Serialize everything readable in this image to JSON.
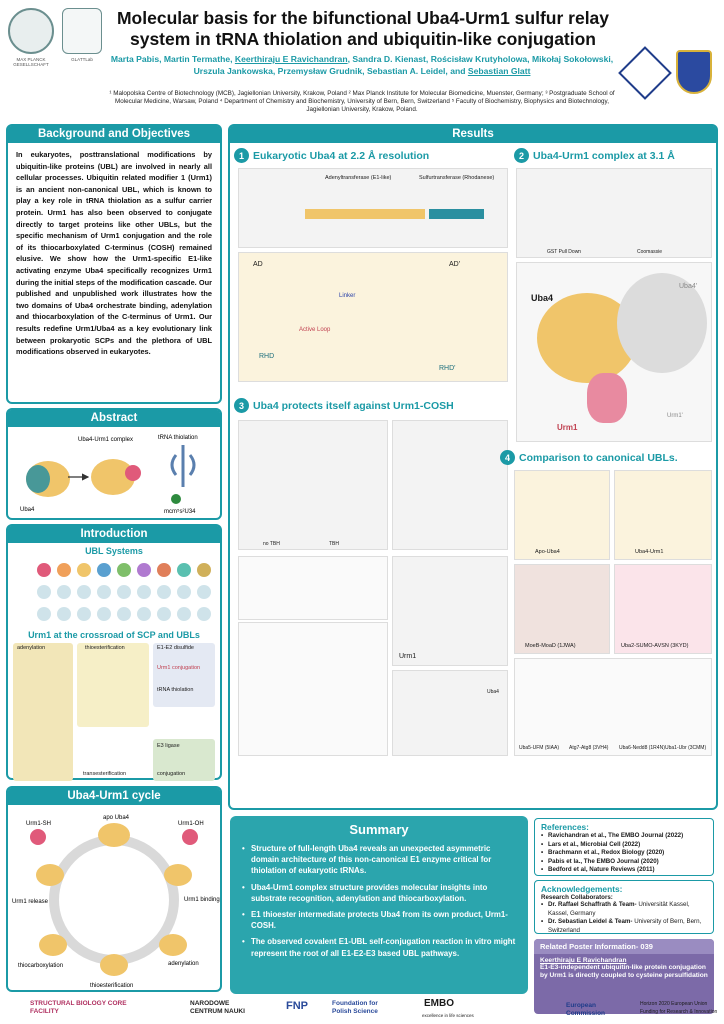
{
  "header": {
    "title": "Molecular basis for the bifunctional Uba4-Urm1 sulfur relay system in tRNA thiolation and ubiquitin-like conjugation",
    "authors_line1": "Marta Pabis",
    "authors_line1_rest": ", Martin Termathe, ",
    "presenter": "Keerthiraju E Ravichandran",
    "authors_line1_tail": ", Sandra D. Kienast, Rościsław Krutyholowa,",
    "authors_line2_a": "Mikołaj Sokołowski, Urszula Jankowska, Przemysław Grudnik, Sebastian A. Leidel, and ",
    "pi": "Sebastian Glatt",
    "affiliations": "¹ Malopolska Centre of Biotechnology (MCB), Jagiellonian University, Krakow, Poland ² Max Planck Institute for Molecular Biomedicine, Muenster, Germany; ³ Postgraduate School of Molecular Medicine, Warsaw, Poland ⁴ Department of Chemistry and Biochemistry, University of Bern, Bern, Switzerland ⁵ Faculty of Biochemistry, Biophysics and Biotechnology, Jagiellonian University, Krakow, Poland.",
    "logo_left_caption": "MAX PLANCK GESELLSCHAFT",
    "logo_lab_caption": "GLATTLab"
  },
  "background": {
    "heading": "Background and Objectives",
    "text": "In eukaryotes, posttranslational modifications by ubiquitin-like proteins (UBL) are involved in nearly all cellular processes. Ubiquitin related modifier 1 (Urm1) is an ancient non-canonical UBL, which is known to play a key role in tRNA thiolation as a sulfur carrier protein. Urm1 has also been observed to conjugate directly to target proteins like other UBLs, but the specific mechanism of Urm1 conjugation and the role of its thiocarboxylated C-terminus (COSH) remained elusive. We show how the Urm1-specific E1-like activating enzyme Uba4 specifically recognizes Urm1 during the initial steps of the modification cascade. Our published and unpublished work illustrates how the two domains of Uba4 orchestrate binding, adenylation and thiocarboxylation of the C-terminus of Urm1. Our results redefine Urm1/Uba4 as a key evolutionary link between prokaryotic SCPs and the plethora of UBL modifications observed in eukaryotes."
  },
  "abstract": {
    "heading": "Abstract",
    "labels": [
      "Uba4-Urm1 complex",
      "tRNA thiolation",
      "Uba4",
      "mcm⁵s²U34"
    ]
  },
  "introduction": {
    "heading": "Introduction",
    "sub1": "UBL Systems",
    "sub2": "Urm1 at the crossroad of SCP and UBLs",
    "crossroad_labels": [
      "adenylation",
      "thioesterification",
      "E1-E2 disulfide",
      "Urm1 conjugation",
      "tRNA thiolation",
      "transesterification",
      "E3 ligase",
      "conjugation"
    ]
  },
  "cycle": {
    "heading": "Uba4-Urm1 cycle",
    "labels": [
      "apo Uba4",
      "Urm1-SH",
      "Urm1-OH",
      "Urm1 binding",
      "adenylation",
      "thioesterification",
      "thiocarboxylation",
      "Urm1 release"
    ]
  },
  "results": {
    "heading": "Results",
    "s1": {
      "num": "1",
      "title": "Eukaryotic Uba4 at 2.2 Å resolution"
    },
    "s2": {
      "num": "2",
      "title": "Uba4-Urm1 complex at 3.1 Å"
    },
    "s3": {
      "num": "3",
      "title": "Uba4 protects itself against Urm1-COSH"
    },
    "s4": {
      "num": "4",
      "title": "Comparison to canonical UBLs."
    },
    "fig1_labels": [
      "AD",
      "AD'",
      "RHD",
      "RHD'",
      "Linker",
      "Active Loop",
      "Adenyltransferase (E1-like)",
      "Sulfurtransferase (Rhodanese)"
    ],
    "fig2_labels": [
      "Uba4",
      "Uba4'",
      "Urm1",
      "Urm1'",
      "GST Pull Down",
      "Coomassie"
    ],
    "fig3_labels": [
      "Uba4",
      "Urm1",
      "no TBH",
      "TBH"
    ],
    "fig4_labels": [
      "Apo-Uba4",
      "Uba4-Urm1",
      "MoeB-MoaD (1JWA)",
      "Uba2-SUMO-AVSN (3KYD)",
      "Uba5-UFM (5IAA)",
      "Atg7-Atg8 (3VH4)",
      "Uba6-Nedd8 (1R4N)",
      "Uba1-Ubr (3CMM)"
    ]
  },
  "summary": {
    "heading": "Summary",
    "items": [
      "Structure of full-length Uba4 reveals an unexpected asymmetric domain architecture of this non-canonical E1 enzyme critical for thiolation of eukaryotic tRNAs.",
      "Uba4-Urm1 complex structure provides molecular insights into substrate recognition, adenylation and thiocarboxylation.",
      "E1 thioester intermediate protects Uba4 from its own product, Urm1-COSH.",
      "The observed covalent E1-UBL self-conjugation reaction in vitro might represent the root of all E1-E2-E3 based UBL pathways."
    ]
  },
  "references": {
    "heading": "References:",
    "items": [
      "Ravichandran et al., The EMBO Journal (2022)",
      "Lars et al., Microbial Cell (2022)",
      "Brachmann et al., Redox Biology (2020)",
      "Pabis et la., The EMBO Journal (2020)",
      "Bedford et al, Nature Reviews (2011)"
    ]
  },
  "acknowledgements": {
    "heading": "Acknowledgements:",
    "collab": "Research Collaborators:",
    "items": [
      {
        "name": "Dr. Raffael Schaffrath & Team-",
        "place": " Universität Kassel, Kassel, Germany"
      },
      {
        "name": "Dr. Sebastian Leidel & Team-",
        "place": " University of Bern, Bern, Switzerland"
      }
    ]
  },
  "related": {
    "heading": "Related Poster Information- 039",
    "name": "Keerthiraju E Ravichandran",
    "text": "E1-E3-independent ubiquitin-like protein conjugation by Urm1 is directly coupled to cysteine persulfidation"
  },
  "footer": {
    "sbcf": "STRUCTURAL BIOLOGY CORE FACILITY",
    "ncn": "NARODOWE CENTRUM NAUKI",
    "fnp": "FNP",
    "fnp_text": "Foundation for Polish Science",
    "embo": "EMBO",
    "embo_sub": "excellence in life sciences",
    "ec": "European Commission",
    "h2020": "Horizon 2020 European Union Funding for Research & Innovation"
  },
  "colors": {
    "accent": "#1b9aa6",
    "uba4": "#f0c56a",
    "urm1": "#e05a7a",
    "rhd": "#2a8fa0",
    "purple": "#7c6aa8"
  }
}
